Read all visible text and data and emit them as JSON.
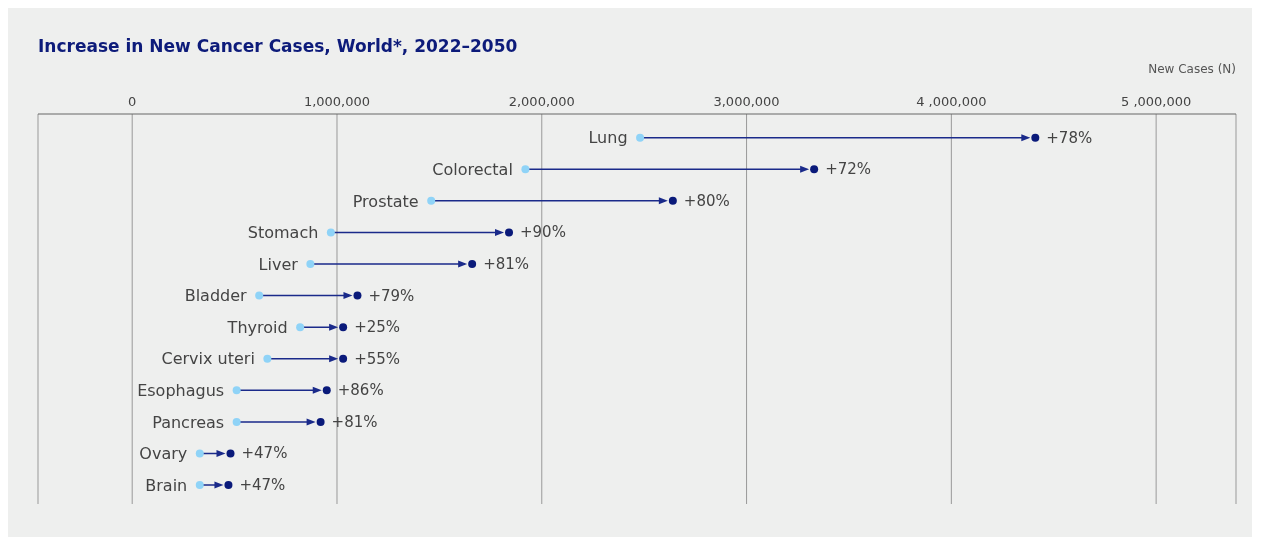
{
  "chart_data": {
    "type": "scatter",
    "orientation": "horizontal",
    "title": "Increase in New Cancer Cases, World*, 2022–2050",
    "xlabel": "New Cases (N)",
    "categories": [
      "Lung",
      "Colorectal",
      "Prostate",
      "Stomach",
      "Liver",
      "Bladder",
      "Thyroid",
      "Cervix uteri",
      "Esophagus",
      "Pancreas",
      "Ovary",
      "Brain"
    ],
    "series": [
      {
        "color": "#8fd3f7",
        "values": [
          2480000,
          1920000,
          1460000,
          970000,
          870000,
          620000,
          820000,
          660000,
          510000,
          510000,
          330000,
          330000
        ]
      },
      {
        "color": "#0a1a7a",
        "values": [
          4410000,
          3330000,
          2640000,
          1840000,
          1660000,
          1100000,
          1030000,
          1030000,
          950000,
          920000,
          480000,
          470000
        ]
      }
    ],
    "annotations": [
      {
        "text": "+78%",
        "x": 4410000,
        "y": "Lung"
      },
      {
        "text": "+72%",
        "x": 3330000,
        "y": "Colorectal"
      },
      {
        "text": "+80%",
        "x": 2640000,
        "y": "Prostate"
      },
      {
        "text": "+90%",
        "x": 1840000,
        "y": "Stomach"
      },
      {
        "text": "+81%",
        "x": 1660000,
        "y": "Liver"
      },
      {
        "text": "+79%",
        "x": 1100000,
        "y": "Bladder"
      },
      {
        "text": "+25%",
        "x": 1030000,
        "y": "Thyroid"
      },
      {
        "text": "+55%",
        "x": 1030000,
        "y": "Cervix uteri"
      },
      {
        "text": "+86%",
        "x": 950000,
        "y": "Esophagus"
      },
      {
        "text": "+81%",
        "x": 920000,
        "y": "Pancreas"
      },
      {
        "text": "+47%",
        "x": 480000,
        "y": "Ovary"
      },
      {
        "text": "+47%",
        "x": 470000,
        "y": "Brain"
      }
    ],
    "xlim": [
      -460000,
      5390000
    ],
    "xticks": [
      {
        "value": 0,
        "label": "0"
      },
      {
        "value": 1000000,
        "label": "1,000,000"
      },
      {
        "value": 2000000,
        "label": "2,000,000"
      },
      {
        "value": 3000000,
        "label": "3,000,000"
      },
      {
        "value": 4000000,
        "label": "4 ,000,000"
      },
      {
        "value": 5000000,
        "label": "5 ,000,000"
      }
    ],
    "grid": "x",
    "legend": false,
    "marker": "circle"
  }
}
